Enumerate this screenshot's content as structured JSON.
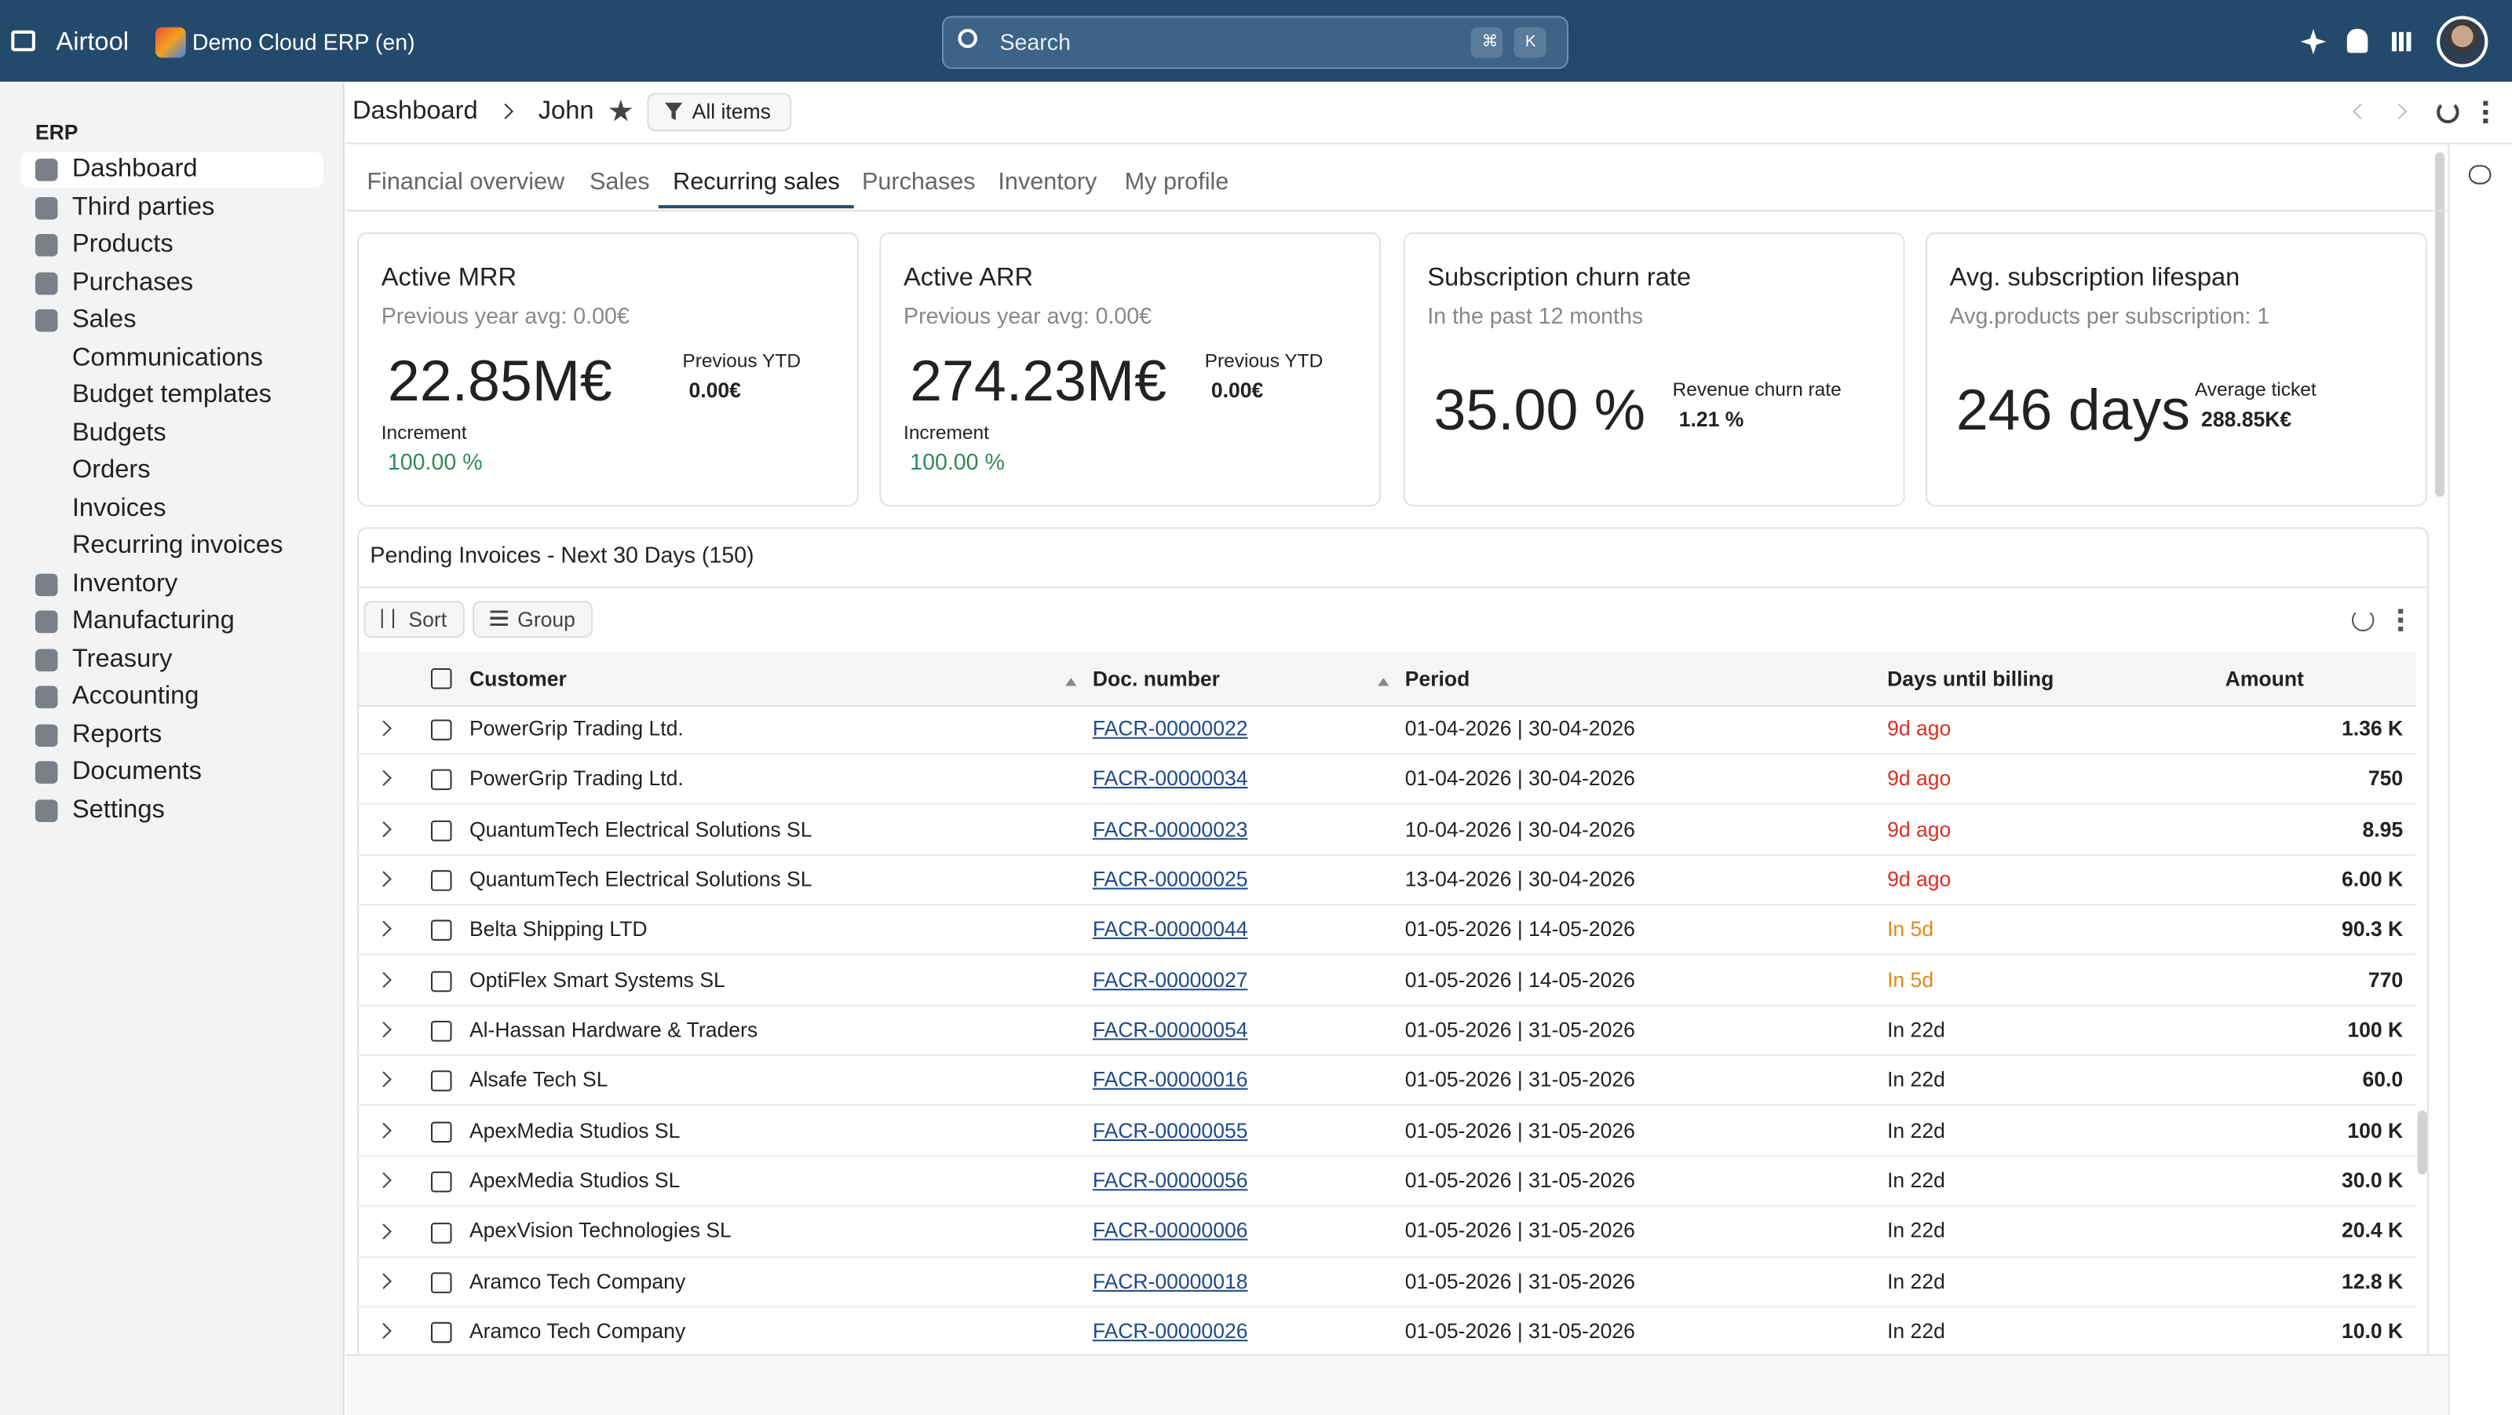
{
  "topbar": {
    "app": "Airtool",
    "company": "Demo Cloud ERP (en)",
    "search": "Search",
    "shortcut": [
      "⌘",
      "K"
    ]
  },
  "sidebar": {
    "section": "ERP",
    "items": [
      "Dashboard",
      "Third parties",
      "Products",
      "Purchases",
      "Sales",
      "Communications",
      "Budget templates",
      "Budgets",
      "Orders",
      "Invoices",
      "Recurring invoices",
      "Inventory",
      "Manufacturing",
      "Treasury",
      "Accounting",
      "Reports",
      "Documents",
      "Settings"
    ],
    "sub_items": [
      5,
      6,
      7,
      8,
      9,
      10
    ],
    "active": 0
  },
  "breadcrumb": [
    "Dashboard",
    "John"
  ],
  "filter": "All items",
  "tabs": [
    "Financial overview",
    "Sales",
    "Recurring sales",
    "Purchases",
    "Inventory",
    "My profile"
  ],
  "active_tab": 2,
  "cards": [
    {
      "title": "Active MRR",
      "subtitle": "Previous year avg: 0.00€",
      "value": "22.85M€",
      "side_label": "Previous YTD",
      "side_value": "0.00€",
      "extra_label": "Increment",
      "extra_value": "100.00 %"
    },
    {
      "title": "Active ARR",
      "subtitle": "Previous year avg: 0.00€",
      "value": "274.23M€",
      "side_label": "Previous YTD",
      "side_value": "0.00€",
      "extra_label": "Increment",
      "extra_value": "100.00 %"
    },
    {
      "title": "Subscription churn rate",
      "subtitle": "In the past 12 months",
      "value": "35.00 %",
      "side_label": "Revenue churn rate",
      "side_value": "1.21 %"
    },
    {
      "title": "Avg. subscription lifespan",
      "subtitle": "Avg.products per subscription: 1",
      "value": "246 days",
      "side_label": "Average ticket",
      "side_value": "288.85K€"
    }
  ],
  "table": {
    "title": "Pending Invoices - Next 30 Days (150)",
    "sort": "Sort",
    "group": "Group",
    "columns": [
      "Customer",
      "Doc. number",
      "Period",
      "Days until billing",
      "Amount"
    ],
    "rows": [
      [
        "PowerGrip Trading Ltd.",
        "FACR-00000022",
        "01-04-2026 | 30-04-2026",
        "9d ago",
        "1.36 K"
      ],
      [
        "PowerGrip Trading Ltd.",
        "FACR-00000034",
        "01-04-2026 | 30-04-2026",
        "9d ago",
        "750"
      ],
      [
        "QuantumTech Electrical Solutions SL",
        "FACR-00000023",
        "10-04-2026 | 30-04-2026",
        "9d ago",
        "8.95"
      ],
      [
        "QuantumTech Electrical Solutions SL",
        "FACR-00000025",
        "13-04-2026 | 30-04-2026",
        "9d ago",
        "6.00 K"
      ],
      [
        "Belta Shipping LTD",
        "FACR-00000044",
        "01-05-2026 | 14-05-2026",
        "In 5d",
        "90.3 K"
      ],
      [
        "OptiFlex Smart Systems SL",
        "FACR-00000027",
        "01-05-2026 | 14-05-2026",
        "In 5d",
        "770"
      ],
      [
        "Al-Hassan Hardware & Traders",
        "FACR-00000054",
        "01-05-2026 | 31-05-2026",
        "In 22d",
        "100 K"
      ],
      [
        "Alsafe Tech SL",
        "FACR-00000016",
        "01-05-2026 | 31-05-2026",
        "In 22d",
        "60.0"
      ],
      [
        "ApexMedia Studios SL",
        "FACR-00000055",
        "01-05-2026 | 31-05-2026",
        "In 22d",
        "100 K"
      ],
      [
        "ApexMedia Studios SL",
        "FACR-00000056",
        "01-05-2026 | 31-05-2026",
        "In 22d",
        "30.0 K"
      ],
      [
        "ApexVision Technologies SL",
        "FACR-00000006",
        "01-05-2026 | 31-05-2026",
        "In 22d",
        "20.4 K"
      ],
      [
        "Aramco Tech Company",
        "FACR-00000018",
        "01-05-2026 | 31-05-2026",
        "In 22d",
        "12.8 K"
      ],
      [
        "Aramco Tech Company",
        "FACR-00000026",
        "01-05-2026 | 31-05-2026",
        "In 22d",
        "10.0 K"
      ]
    ],
    "days_colors": [
      "#d93025",
      "#d93025",
      "#d93025",
      "#d93025",
      "#e0891a",
      "#e0891a",
      "#222222",
      "#222222",
      "#222222",
      "#222222",
      "#222222",
      "#222222",
      "#222222"
    ]
  }
}
